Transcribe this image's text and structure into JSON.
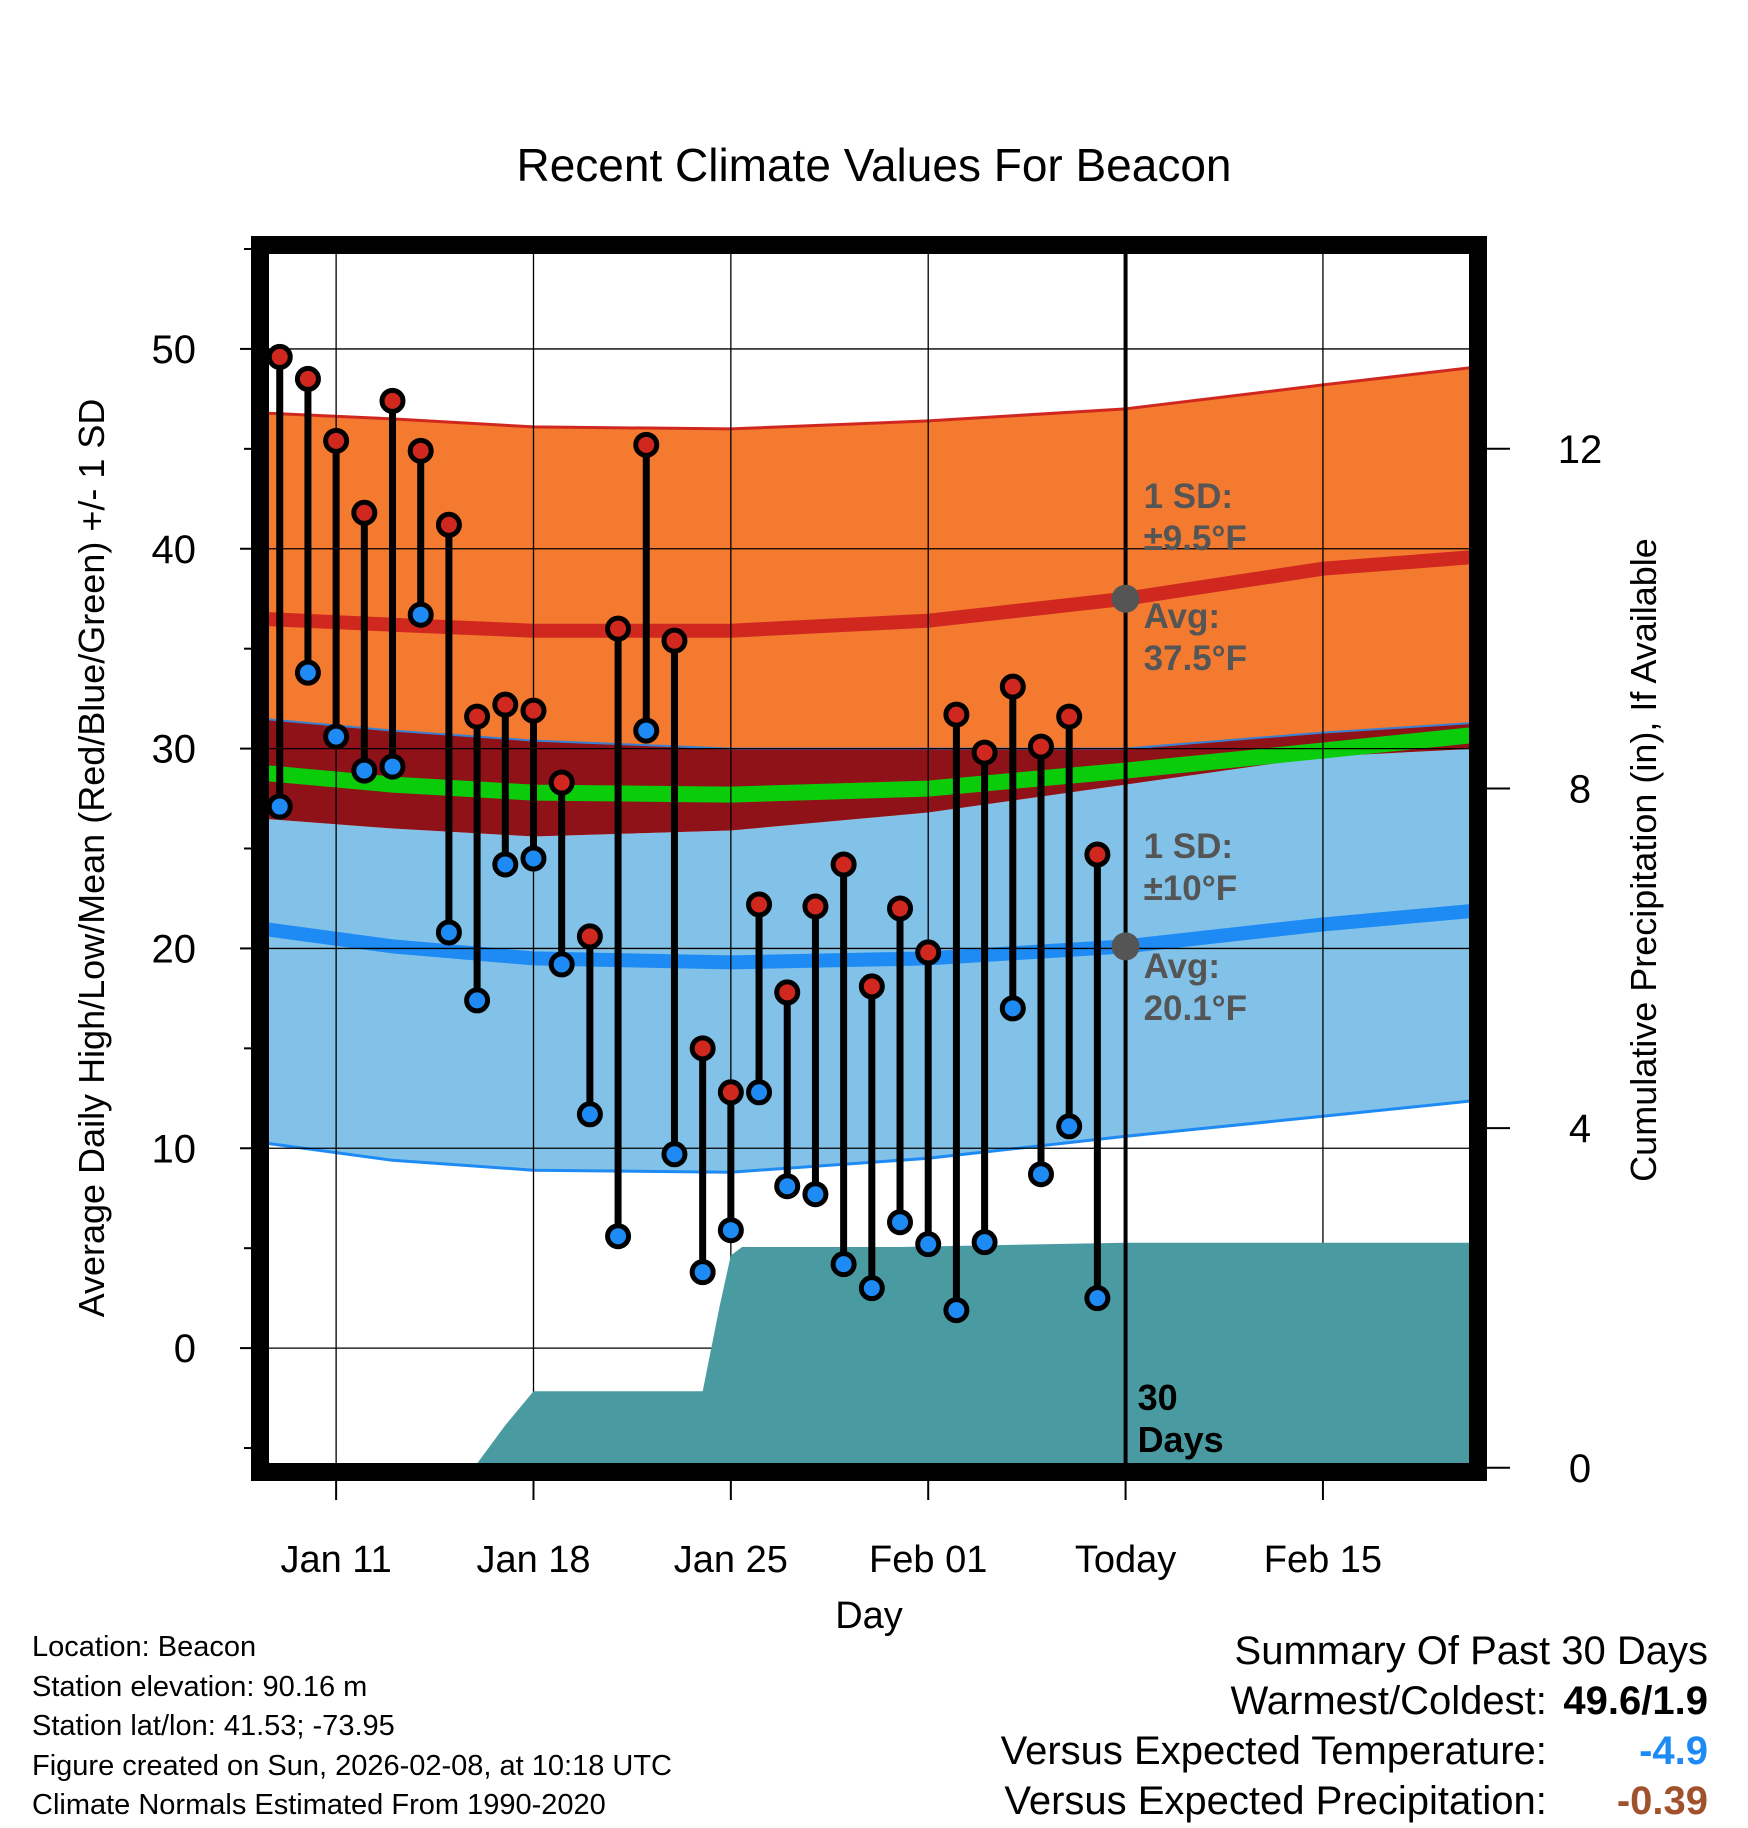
{
  "chart_data": {
    "type": "line",
    "title": "Recent Climate Values For Beacon",
    "xlabel": "Day",
    "ylabel": "Average Daily High/Low/Mean (Red/Blue/Green) +/- 1 SD",
    "y2label": "Cumulative Precipitation (in), If Available",
    "ylim": [
      -6.2,
      55.2
    ],
    "y2lim": [
      -0.05,
      14.4
    ],
    "xlim": [
      -2.7,
      40.5
    ],
    "x_note": "day index 0 = Jan 11 (2026)",
    "x_ticks": [
      {
        "day": 0,
        "label": "Jan 11"
      },
      {
        "day": 7,
        "label": "Jan 18"
      },
      {
        "day": 14,
        "label": "Jan 25"
      },
      {
        "day": 21,
        "label": "Feb 01"
      },
      {
        "day": 28,
        "label": "Today"
      },
      {
        "day": 35,
        "label": "Feb 15"
      }
    ],
    "y_ticks": [
      0,
      10,
      20,
      30,
      40,
      50
    ],
    "y2_ticks": [
      0,
      4,
      8,
      12
    ],
    "today_day": 28,
    "window_label": [
      "30",
      "Days"
    ],
    "normals_x": [
      -2.7,
      2,
      7,
      14,
      21,
      28,
      35,
      40.5
    ],
    "normal_high": {
      "avg": [
        36.5,
        36.2,
        35.9,
        35.9,
        36.4,
        37.5,
        39.0,
        39.6
      ],
      "upper": [
        46.8,
        46.5,
        46.1,
        46.0,
        46.4,
        47.0,
        48.2,
        49.1
      ],
      "lower": [
        31.5,
        30.9,
        30.4,
        30.0,
        30.0,
        30.0,
        30.8,
        31.3
      ]
    },
    "normal_low": {
      "avg": [
        21.0,
        20.1,
        19.5,
        19.3,
        19.5,
        20.1,
        21.2,
        21.9
      ],
      "upper": [
        26.5,
        26.0,
        25.6,
        25.9,
        26.8,
        28.2,
        29.6,
        30.0
      ],
      "lower": [
        10.3,
        9.4,
        8.9,
        8.8,
        9.5,
        10.6,
        11.6,
        12.4
      ]
    },
    "normal_mean": [
      28.8,
      28.2,
      27.8,
      27.7,
      28.0,
      28.9,
      29.9,
      30.7
    ],
    "sd_high_label": [
      "1 SD:",
      "±9.5°F"
    ],
    "avg_high_label": [
      "Avg:",
      "37.5°F"
    ],
    "sd_low_label": [
      "1 SD:",
      "±10°F"
    ],
    "avg_low_label": [
      "Avg:",
      "20.1°F"
    ],
    "today_avg_high": 37.5,
    "today_avg_low": 20.1,
    "days": [
      -2,
      -1,
      0,
      1,
      2,
      3,
      4,
      5,
      6,
      7,
      8,
      9,
      10,
      11,
      12,
      13,
      14,
      15,
      16,
      17,
      18,
      19,
      20,
      21,
      22,
      23,
      24,
      25,
      26,
      27
    ],
    "highs": [
      49.6,
      48.5,
      45.4,
      41.8,
      47.4,
      44.9,
      41.2,
      31.6,
      32.2,
      31.9,
      28.3,
      20.6,
      36.0,
      45.2,
      35.4,
      15.0,
      12.8,
      22.2,
      17.8,
      22.1,
      24.2,
      18.1,
      22.0,
      19.8,
      31.7,
      29.8,
      33.1,
      30.1,
      31.6,
      24.7
    ],
    "lows": [
      27.1,
      33.8,
      30.6,
      28.9,
      29.1,
      36.7,
      20.8,
      17.4,
      24.2,
      24.5,
      19.2,
      11.7,
      5.6,
      30.9,
      9.7,
      3.8,
      5.9,
      12.8,
      8.1,
      7.7,
      4.2,
      3.0,
      6.3,
      5.2,
      1.9,
      5.3,
      17.0,
      8.7,
      11.1,
      2.5
    ],
    "precip_x": [
      -2.7,
      -1,
      2,
      5,
      6,
      7,
      8,
      13,
      13.6,
      14,
      14.4,
      15,
      20,
      28,
      32,
      40.5
    ],
    "precip": [
      0.0,
      0.0,
      0.02,
      0.05,
      0.5,
      0.9,
      0.9,
      0.9,
      1.9,
      2.5,
      2.6,
      2.6,
      2.6,
      2.65,
      2.65,
      2.65
    ],
    "colors": {
      "high_band": "#F47A30",
      "high_avg": "#D0281F",
      "low_band": "#82C2E8",
      "low_avg": "#1E8BF5",
      "overlap": "#8F1219",
      "mean": "#0ACC0A",
      "precip": "#4A9AA2",
      "high_dot": "#D0281F",
      "low_dot": "#1E8BF5",
      "label_gray": "#555555"
    }
  },
  "footer": {
    "location": "Location: Beacon",
    "elevation": "Station elevation: 90.16 m",
    "latlon": "Station lat/lon: 41.53; -73.95",
    "created": "Figure created on Sun, 2026-02-08, at 10:18 UTC",
    "normals": "Climate Normals Estimated From 1990-2020"
  },
  "summary": {
    "heading": "Summary Of Past 30 Days",
    "warm_cold_label": "Warmest/Coldest:",
    "warm_cold_value": "49.6/1.9",
    "temp_label": "Versus Expected Temperature:",
    "temp_value": "-4.9",
    "temp_color": "#1E8BF5",
    "precip_label": "Versus Expected Precipitation:",
    "precip_value": "-0.39",
    "precip_color": "#A0522D"
  }
}
